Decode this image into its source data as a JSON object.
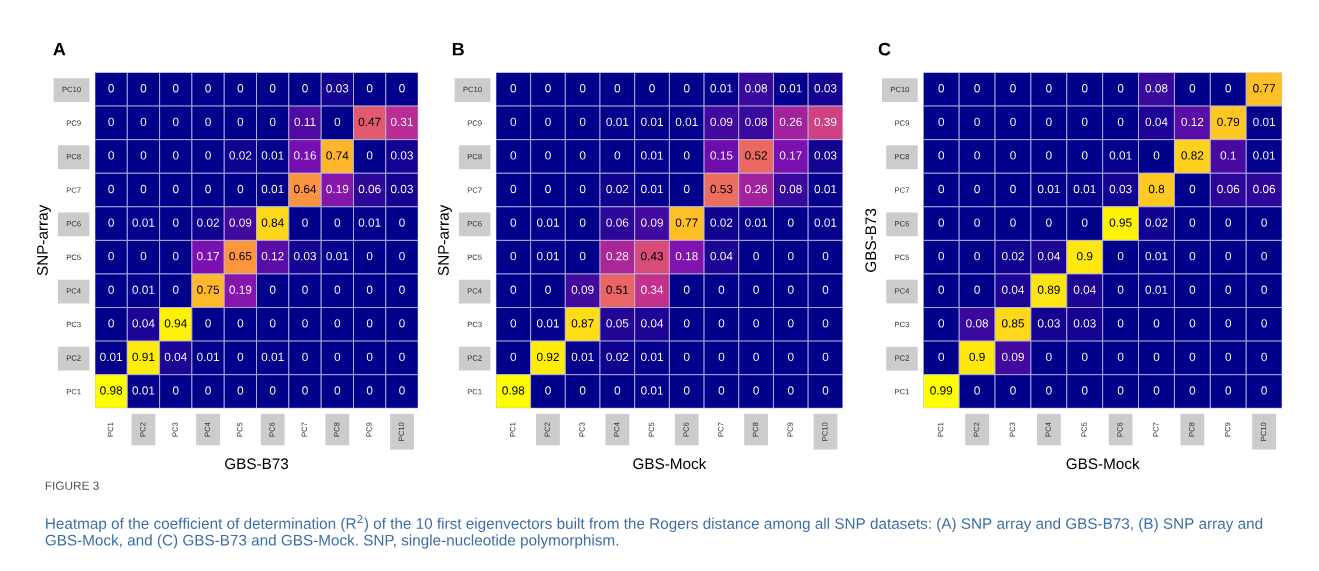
{
  "chart_data": [
    {
      "type": "heatmap",
      "title": "A",
      "xlabel": "GBS-B73",
      "ylabel": "SNP-array",
      "data_labels": true,
      "categories": [
        "PC1",
        "PC2",
        "PC3",
        "PC4",
        "PC5",
        "PC6",
        "PC7",
        "PC8",
        "PC9",
        "PC10"
      ],
      "y_categories": [
        "PC10",
        "PC9",
        "PC8",
        "PC7",
        "PC6",
        "PC5",
        "PC4",
        "PC3",
        "PC2",
        "PC1"
      ],
      "cells": [
        [
          0,
          0,
          0,
          0,
          0,
          0,
          0,
          0.03,
          0,
          0
        ],
        [
          0,
          0,
          0,
          0,
          0,
          0,
          0.11,
          0,
          0.47,
          0.31
        ],
        [
          0,
          0,
          0,
          0,
          0.02,
          0.01,
          0.16,
          0.74,
          0,
          0.03
        ],
        [
          0,
          0,
          0,
          0,
          0,
          0.01,
          0.64,
          0.19,
          0.06,
          0.03
        ],
        [
          0,
          0.01,
          0,
          0.02,
          0.09,
          0.84,
          0,
          0,
          0.01,
          0
        ],
        [
          0,
          0,
          0,
          0.17,
          0.65,
          0.12,
          0.03,
          0.01,
          0,
          0
        ],
        [
          0,
          0.01,
          0,
          0.75,
          0.19,
          0,
          0,
          0,
          0,
          0
        ],
        [
          0,
          0.04,
          0.94,
          0,
          0,
          0,
          0,
          0,
          0,
          0
        ],
        [
          0.01,
          0.91,
          0.04,
          0.01,
          0,
          0.01,
          0,
          0,
          0,
          0
        ],
        [
          0.98,
          0.01,
          0,
          0,
          0,
          0,
          0,
          0,
          0,
          0
        ]
      ],
      "annotations": [
        "FIGURE 3",
        "Heatmap of the coefficient of determination (R$^{2}$) of the 10 first eigenvectors built from the Rogers distance among all SNP datasets: (A) SNP array and GBS-B73, (B) SNP array and GBS-Mock, and (C) GBS-B73 and GBS-Mock. SNP, single-nucleotide polymorphism."
      ]
    },
    {
      "type": "heatmap",
      "title": "B",
      "xlabel": "GBS-Mock",
      "ylabel": "SNP-array",
      "data_labels": true,
      "categories": [
        "PC1",
        "PC2",
        "PC3",
        "PC4",
        "PC5",
        "PC6",
        "PC7",
        "PC8",
        "PC9",
        "PC10"
      ],
      "y_categories": [
        "PC10",
        "PC9",
        "PC8",
        "PC7",
        "PC6",
        "PC5",
        "PC4",
        "PC3",
        "PC2",
        "PC1"
      ],
      "cells": [
        [
          0,
          0,
          0,
          0,
          0,
          0,
          0.01,
          0.08,
          0.01,
          0.03
        ],
        [
          0,
          0,
          0,
          0.01,
          0.01,
          0.01,
          0.09,
          0.08,
          0.26,
          0.39
        ],
        [
          0,
          0,
          0,
          0,
          0.01,
          0,
          0.15,
          0.52,
          0.17,
          0.03
        ],
        [
          0,
          0,
          0,
          0.02,
          0.01,
          0,
          0.53,
          0.26,
          0.08,
          0.01
        ],
        [
          0,
          0.01,
          0,
          0.06,
          0.09,
          0.77,
          0.02,
          0.01,
          0,
          0.01
        ],
        [
          0,
          0.01,
          0,
          0.28,
          0.43,
          0.18,
          0.04,
          0,
          0,
          0
        ],
        [
          0,
          0,
          0.09,
          0.51,
          0.34,
          0,
          0,
          0,
          0,
          0
        ],
        [
          0,
          0.01,
          0.87,
          0.05,
          0.04,
          0,
          0,
          0,
          0,
          0
        ],
        [
          0,
          0.92,
          0.01,
          0.02,
          0.01,
          0,
          0,
          0,
          0,
          0
        ],
        [
          0.98,
          0,
          0,
          0,
          0.01,
          0,
          0,
          0,
          0,
          0
        ]
      ]
    },
    {
      "type": "heatmap",
      "title": "C",
      "xlabel": "GBS-Mock",
      "ylabel": "GBS-B73",
      "data_labels": true,
      "categories": [
        "PC1",
        "PC2",
        "PC3",
        "PC4",
        "PC5",
        "PC6",
        "PC7",
        "PC8",
        "PC9",
        "PC10"
      ],
      "y_categories": [
        "PC10",
        "PC9",
        "PC8",
        "PC7",
        "PC6",
        "PC5",
        "PC4",
        "PC3",
        "PC2",
        "PC1"
      ],
      "cells": [
        [
          0,
          0,
          0,
          0,
          0,
          0,
          0.08,
          0,
          0,
          0.77
        ],
        [
          0,
          0,
          0,
          0,
          0,
          0,
          0.04,
          0.12,
          0.79,
          0.01
        ],
        [
          0,
          0,
          0,
          0,
          0,
          0.01,
          0,
          0.82,
          0.1,
          0.01
        ],
        [
          0,
          0,
          0,
          0.01,
          0.01,
          0.03,
          0.8,
          0,
          0.06,
          0.06
        ],
        [
          0,
          0,
          0,
          0,
          0,
          0.95,
          0.02,
          0,
          0,
          0
        ],
        [
          0,
          0,
          0.02,
          0.04,
          0.9,
          0,
          0.01,
          0,
          0,
          0
        ],
        [
          0,
          0,
          0.04,
          0.89,
          0.04,
          0,
          0.01,
          0,
          0,
          0
        ],
        [
          0,
          0.08,
          0.85,
          0.03,
          0.03,
          0,
          0,
          0,
          0,
          0
        ],
        [
          0,
          0.9,
          0.09,
          0,
          0,
          0,
          0,
          0,
          0,
          0
        ],
        [
          0.99,
          0,
          0,
          0,
          0,
          0,
          0,
          0,
          0,
          0
        ]
      ]
    }
  ]
}
